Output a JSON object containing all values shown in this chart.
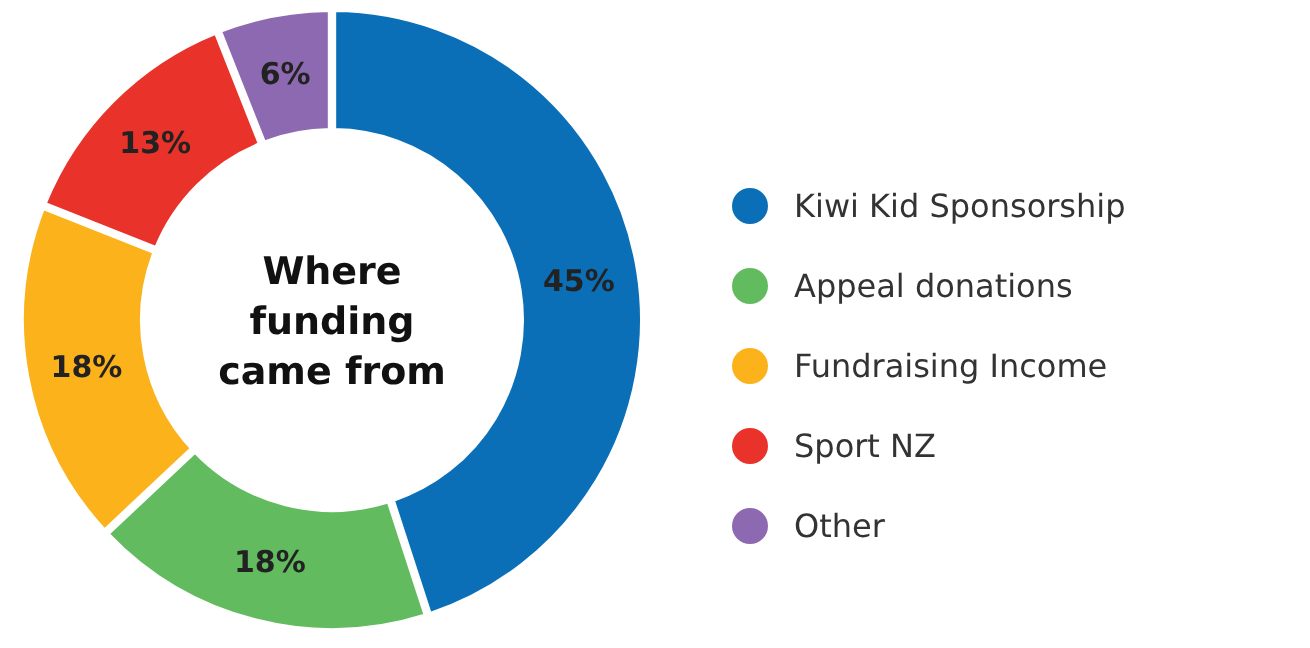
{
  "chart_data": {
    "type": "donut",
    "title": "Where funding came from",
    "categories": [
      "Kiwi Kid Sponsorship",
      "Appeal donations",
      "Fundraising Income",
      "Sport NZ",
      "Other"
    ],
    "values": [
      45,
      18,
      18,
      13,
      6
    ],
    "colors": [
      "#0b6fb8",
      "#63bb5f",
      "#fbb21b",
      "#e8322a",
      "#8d69b1"
    ],
    "value_labels": [
      "45%",
      "18%",
      "18%",
      "13%",
      "6%"
    ],
    "legend": "right"
  }
}
